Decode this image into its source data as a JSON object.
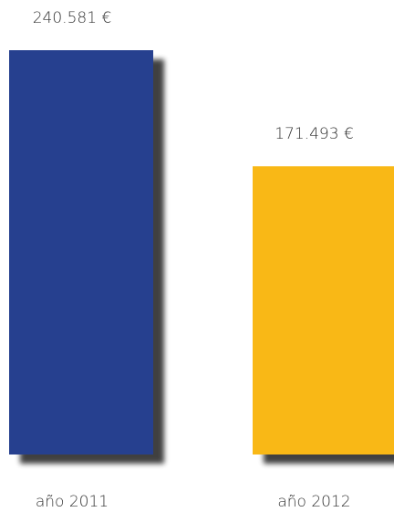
{
  "chart_data": {
    "type": "bar",
    "categories": [
      "año 2011",
      "año 2012"
    ],
    "values": [
      240581,
      171493
    ],
    "value_labels": [
      "240.581 €",
      "171.493 €"
    ],
    "colors": [
      "#263f8f",
      "#f9b817"
    ]
  }
}
